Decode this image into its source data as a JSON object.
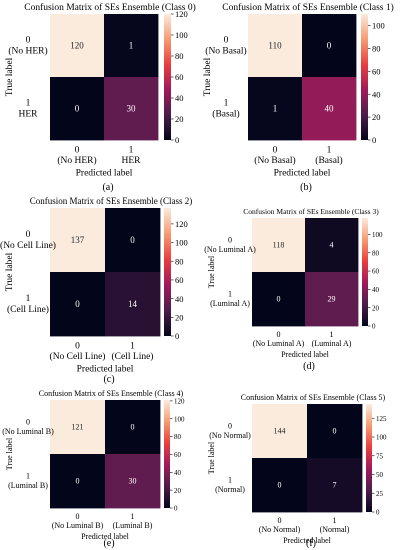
{
  "chart_data": [
    {
      "type": "heatmap",
      "title": "Confusion Matrix of SEs Ensemble (Class 0)",
      "caption": "(a)",
      "xlabel": "Predicted label",
      "ylabel": "True label",
      "x_tick_labels": [
        [
          "0",
          "(No HER)"
        ],
        [
          "1",
          "HER"
        ]
      ],
      "y_tick_labels": [
        [
          "0",
          "(No HER)"
        ],
        [
          "1",
          "HER"
        ]
      ],
      "matrix": [
        [
          120,
          1
        ],
        [
          0,
          30
        ]
      ],
      "colorbar_ticks": [
        0,
        20,
        40,
        60,
        80,
        100,
        120
      ],
      "vmin": 0,
      "vmax": 120
    },
    {
      "type": "heatmap",
      "title": "Confusion Matrix of SEs Ensemble (Class 1)",
      "caption": "(b)",
      "xlabel": "Predicted label",
      "ylabel": "True label",
      "x_tick_labels": [
        [
          "0",
          "(No Basal)"
        ],
        [
          "1",
          "(Basal)"
        ]
      ],
      "y_tick_labels": [
        [
          "0",
          "(No Basal)"
        ],
        [
          "1",
          "(Basal)"
        ]
      ],
      "matrix": [
        [
          110,
          0
        ],
        [
          1,
          40
        ]
      ],
      "colorbar_ticks": [
        0,
        20,
        40,
        60,
        80,
        100
      ],
      "vmin": 0,
      "vmax": 110
    },
    {
      "type": "heatmap",
      "title": "Confusion Matrix of SEs Ensemble (Class 2)",
      "caption": "(c)",
      "xlabel": "Predicted label",
      "ylabel": "True label",
      "x_tick_labels": [
        [
          "0",
          "(No Cell Line)"
        ],
        [
          "1",
          "(Cell Line)"
        ]
      ],
      "y_tick_labels": [
        [
          "0",
          "(No Cell Line)"
        ],
        [
          "1",
          "(Cell Line)"
        ]
      ],
      "matrix": [
        [
          137,
          0
        ],
        [
          0,
          14
        ]
      ],
      "colorbar_ticks": [
        0,
        20,
        40,
        60,
        80,
        100,
        120
      ],
      "vmin": 0,
      "vmax": 137
    },
    {
      "type": "heatmap",
      "title": "Confusion Matrix of SEs Ensemble (Class 3)",
      "caption": "(d)",
      "xlabel": "Predicted label",
      "ylabel": "True label",
      "x_tick_labels": [
        [
          "0",
          "(No Luminal A)"
        ],
        [
          "1",
          "(Luminal A)"
        ]
      ],
      "y_tick_labels": [
        [
          "0",
          "(No Luminal A)"
        ],
        [
          "1",
          "(Luminal A)"
        ]
      ],
      "matrix": [
        [
          118,
          4
        ],
        [
          0,
          29
        ]
      ],
      "colorbar_ticks": [
        0,
        20,
        40,
        60,
        80,
        100
      ],
      "vmin": 0,
      "vmax": 118
    },
    {
      "type": "heatmap",
      "title": "Confusion Matrix of SEs Ensemble (Class 4)",
      "caption": "(e)",
      "xlabel": "Predicted label",
      "ylabel": "True label",
      "x_tick_labels": [
        [
          "0",
          "(No Luminal B)"
        ],
        [
          "1",
          "(Luminal B)"
        ]
      ],
      "y_tick_labels": [
        [
          "0",
          "(No Luminal B)"
        ],
        [
          "1",
          "(Luminal B)"
        ]
      ],
      "matrix": [
        [
          121,
          0
        ],
        [
          0,
          30
        ]
      ],
      "colorbar_ticks": [
        0,
        20,
        40,
        60,
        80,
        100,
        120
      ],
      "vmin": 0,
      "vmax": 121
    },
    {
      "type": "heatmap",
      "title": "Confusion Matrix of SEs Ensemble (Class 5)",
      "caption": "(f)",
      "xlabel": "Predicted label",
      "ylabel": "True label",
      "x_tick_labels": [
        [
          "0",
          "(No Normal)"
        ],
        [
          "1",
          "(Normal)"
        ]
      ],
      "y_tick_labels": [
        [
          "0",
          "(No Normal)"
        ],
        [
          "1",
          "(Normal)"
        ]
      ],
      "matrix": [
        [
          144,
          0
        ],
        [
          0,
          7
        ]
      ],
      "colorbar_ticks": [
        0,
        25,
        50,
        75,
        100,
        125
      ],
      "vmin": 0,
      "vmax": 144
    }
  ]
}
